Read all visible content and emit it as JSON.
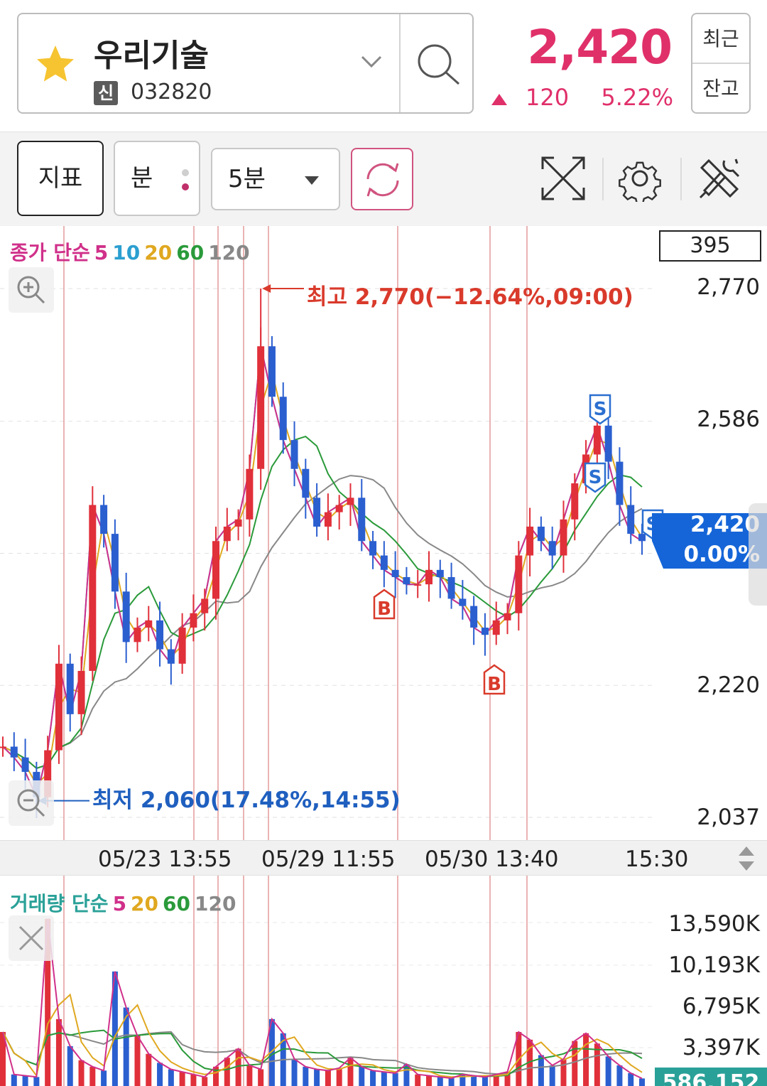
{
  "header": {
    "stock_name": "우리기술",
    "market_badge": "신",
    "stock_code": "032820",
    "price": "2,420",
    "change": "120",
    "change_pct": "5.22%",
    "side_btn_recent": "최근",
    "side_btn_balance": "잔고",
    "icons": [
      "star-icon",
      "chevron-down-icon",
      "search-icon",
      "up-triangle-icon"
    ]
  },
  "toolbar": {
    "indicator_label": "지표",
    "minute_label": "분",
    "interval_label": "5분",
    "icons": [
      "refresh-icon",
      "expand-icon",
      "gear-icon",
      "tools-icon"
    ]
  },
  "colors": {
    "up": "#e0306a",
    "down": "#1f5fbf",
    "ma5": "#d0308a",
    "ma10": "#2b9fd0",
    "ma20": "#e0a820",
    "ma60": "#2a9a3a",
    "ma120": "#888888",
    "current_tag": "#1565d8",
    "volume_tag": "#2aa198"
  },
  "price_chart": {
    "legend": {
      "prefix": "종가 단순",
      "periods": [
        "5",
        "10",
        "20",
        "60",
        "120"
      ]
    },
    "count_box": "395",
    "y_labels": [
      "2,770",
      "2,586",
      "2,220",
      "2,037"
    ],
    "high_label": "최고 2,770(−12.64%,09:00)",
    "low_label": "최저 2,060(17.48%,14:55)",
    "current_price": "2,420",
    "current_pct": "0.00%",
    "signal_b": "B",
    "signal_s": "S",
    "x_labels": [
      "05/23 13:55",
      "05/29 11:55",
      "05/30 13:40",
      "15:30"
    ]
  },
  "volume_chart": {
    "legend": {
      "prefix": "거래량 단순",
      "periods": [
        "5",
        "20",
        "60",
        "120"
      ]
    },
    "y_labels": [
      "13,590K",
      "10,193K",
      "6,795K",
      "3,397K"
    ],
    "current_volume": "586,152"
  },
  "chart_data": {
    "type": "line",
    "ylim": [
      2037,
      2770
    ],
    "high": 2770,
    "low": 2060,
    "last": 2420,
    "x_ticks": [
      "05/23 13:55",
      "05/29 11:55",
      "05/30 13:40",
      "15:30"
    ],
    "series": [
      {
        "values": [
          2135,
          2120,
          2100,
          2065,
          2130,
          2250,
          2180,
          2240,
          2470,
          2430,
          2350,
          2280,
          2300,
          2310,
          2270,
          2250,
          2300,
          2320,
          2340,
          2420,
          2440,
          2450,
          2520,
          2690,
          2620,
          2560,
          2520,
          2480,
          2440,
          2460,
          2470,
          2480,
          2420,
          2400,
          2380,
          2370,
          2360,
          2360,
          2380,
          2370,
          2340,
          2330,
          2300,
          2290,
          2310,
          2320,
          2400,
          2440,
          2420,
          2400,
          2450,
          2500,
          2540,
          2580,
          2530,
          2470,
          2430,
          2420
        ]
      }
    ],
    "volume_max": 13590,
    "volume_k": [
      4200,
      900,
      800,
      700,
      13000,
      5200,
      3100,
      2000,
      1500,
      1200,
      8900,
      6100,
      3900,
      2500,
      1800,
      1300,
      1100,
      900,
      700,
      1500,
      2200,
      2900,
      1600,
      1300,
      5200,
      4100,
      2100,
      1500,
      1300,
      1200,
      1400,
      2200,
      1500,
      1200,
      1100,
      1000,
      1700,
      900,
      800,
      700,
      600,
      900,
      800,
      700,
      900,
      1100,
      4200,
      3600,
      2400,
      1600,
      2100,
      3500,
      4100,
      3300,
      2300,
      1600,
      1000,
      586
    ]
  }
}
